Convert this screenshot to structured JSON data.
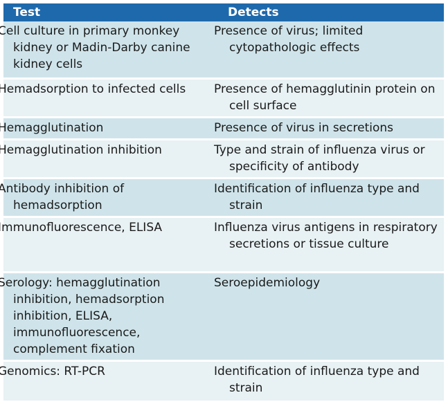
{
  "table": {
    "headers": [
      "Test",
      "Detects"
    ],
    "rows": [
      {
        "test": "Cell culture in primary monkey kidney or Madin-Darby canine kidney cells",
        "detects": "Presence of virus; limited cytopathologic effects"
      },
      {
        "test": "Hemadsorption to infected cells",
        "detects": "Presence of hemagglutinin protein on cell surface"
      },
      {
        "test": "Hemagglutination",
        "detects": "Presence of virus in secretions"
      },
      {
        "test": "Hemagglutination inhibition",
        "detects": "Type and strain of influenza virus or specificity of antibody"
      },
      {
        "test": "Antibody inhibition of hemadsorption",
        "detects": "Identification of influenza type and strain"
      },
      {
        "test": "Immunofluorescence, ELISA",
        "detects": "Influenza virus antigens in respiratory secretions or tissue culture"
      },
      {
        "test": "Serology: hemagglutination inhibition, hemadsorption inhibition, ELISA, immunofluorescence, complement fixation",
        "detects": "Seroepidemiology"
      },
      {
        "test": "Genomics: RT-PCR",
        "detects": "Identification of influenza type and strain"
      }
    ]
  },
  "colors": {
    "header_bg": "#1e69ab",
    "row_odd_bg": "#cfe4ea",
    "row_even_bg": "#e8f1f3"
  }
}
